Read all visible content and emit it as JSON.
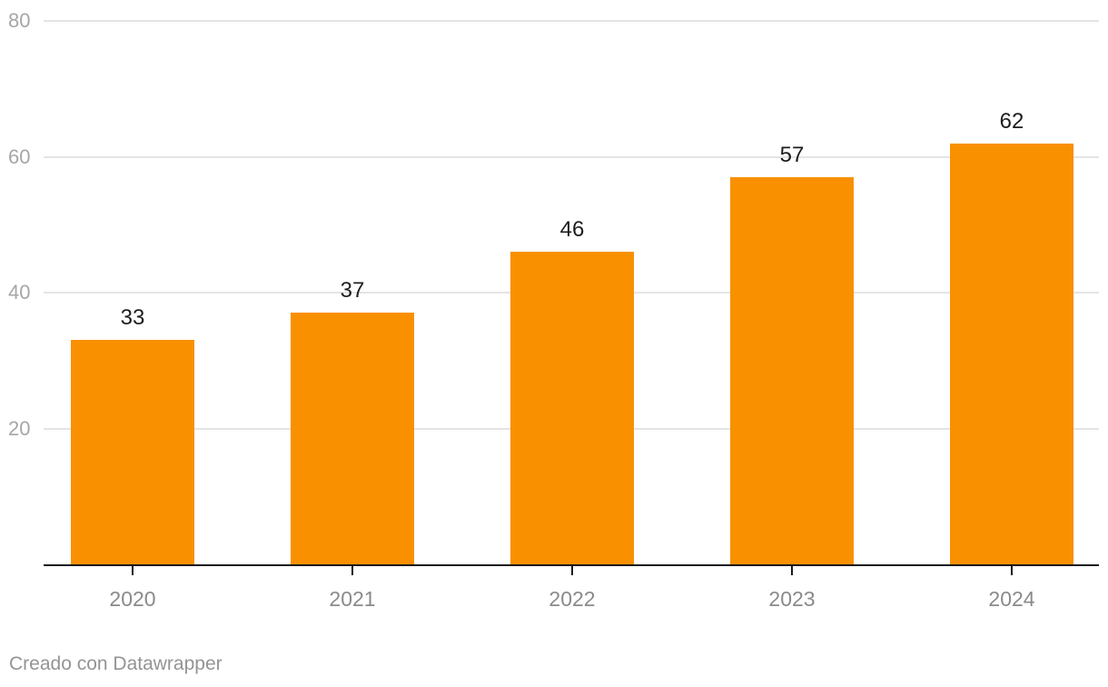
{
  "chart_data": {
    "type": "bar",
    "title": "",
    "xlabel": "",
    "ylabel": "",
    "categories": [
      "2020",
      "2021",
      "2022",
      "2023",
      "2024"
    ],
    "values": [
      33,
      37,
      46,
      57,
      62
    ],
    "ylim": [
      0,
      80
    ],
    "y_ticks": [
      20,
      40,
      60,
      80
    ],
    "grid": "horizontal",
    "legend_position": "none",
    "colors": {
      "bar": "#f99000",
      "value_label": "#1d1d1d",
      "y_tick_label": "#a6a6a6",
      "x_tick_label": "#8a8a8a",
      "gridline": "#e4e4e4",
      "axis_line": "#1a1a1a",
      "background": "#ffffff"
    }
  },
  "footer": {
    "attribution": "Creado con Datawrapper"
  }
}
